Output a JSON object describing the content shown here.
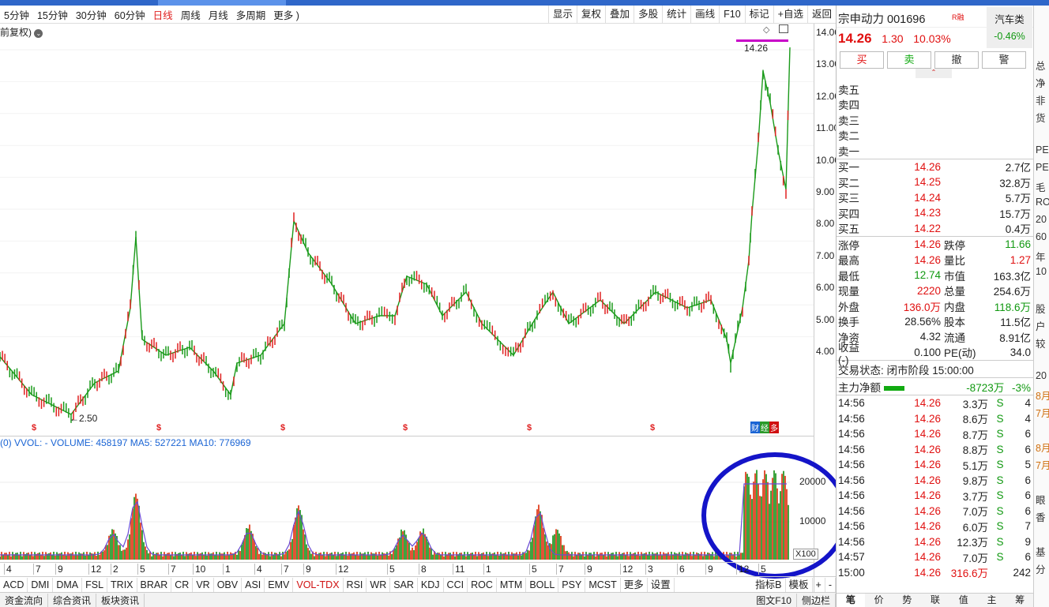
{
  "toolbar": {
    "periods": [
      "5分钟",
      "15分钟",
      "30分钟",
      "60分钟",
      "日线",
      "周线",
      "月线",
      "多周期",
      "更多 )"
    ],
    "active_period": "日线",
    "actions": [
      "显示",
      "复权",
      "叠加",
      "多股",
      "统计",
      "画线",
      "F10",
      "标记",
      "+自选",
      "返回"
    ]
  },
  "chart": {
    "fq_label": "前复权)",
    "price_ticks": [
      "14.00",
      "13.00",
      "12.00",
      "11.00",
      "10.00",
      "9.00",
      "8.00",
      "7.00",
      "6.00",
      "5.00",
      "4.00"
    ],
    "high_marker": "14.26",
    "low_marker": "2.50",
    "s_marker": "$",
    "finance_tags": [
      "财",
      "经",
      "多"
    ]
  },
  "volume": {
    "label": "(0) VVOL: - VOLUME: 458197 MA5: 527221 MA10: 776969",
    "ticks": [
      "20000",
      "10000"
    ],
    "scale": "X100"
  },
  "dates": [
    "4",
    "7",
    "9",
    "12",
    "2",
    "5",
    "7",
    "10",
    "1",
    "4",
    "7",
    "9",
    "12",
    "5",
    "8",
    "11",
    "1",
    "5",
    "7",
    "9",
    "12",
    "3",
    "6",
    "9",
    "12",
    "5"
  ],
  "indicators": [
    "ACD",
    "DMI",
    "DMA",
    "FSL",
    "TRIX",
    "BRAR",
    "CR",
    "VR",
    "OBV",
    "ASI",
    "EMV",
    "VOL-TDX",
    "RSI",
    "WR",
    "SAR",
    "KDJ",
    "CCI",
    "ROC",
    "MTM",
    "BOLL",
    "PSY",
    "MCST",
    "更多",
    "设置"
  ],
  "active_indicator": "VOL-TDX",
  "ind_right": [
    "指标B",
    "模板",
    "+",
    "-"
  ],
  "bottom_tabs": [
    "资金流向",
    "综合资讯",
    "板块资讯"
  ],
  "bottom_right": [
    "图文F10",
    "侧边栏"
  ],
  "stock": {
    "name": "宗申动力 001696",
    "badge": "R融",
    "sector": "汽车类",
    "sector_change": "-0.46%",
    "price": "14.26",
    "change": "1.30",
    "pct": "10.03%",
    "buttons": [
      "买",
      "卖",
      "撤",
      "警"
    ],
    "sell": [
      {
        "label": "卖五"
      },
      {
        "label": "卖四"
      },
      {
        "label": "卖三"
      },
      {
        "label": "卖二"
      },
      {
        "label": "卖一"
      }
    ],
    "buy": [
      {
        "label": "买一",
        "price": "14.26",
        "vol": "2.7亿"
      },
      {
        "label": "买二",
        "price": "14.25",
        "vol": "32.8万"
      },
      {
        "label": "买三",
        "price": "14.24",
        "vol": "5.7万"
      },
      {
        "label": "买四",
        "price": "14.23",
        "vol": "15.7万"
      },
      {
        "label": "买五",
        "price": "14.22",
        "vol": "0.4万"
      }
    ],
    "stats": [
      {
        "l1": "涨停",
        "v1": "14.26",
        "l2": "跌停",
        "v2": "11.66"
      },
      {
        "l1": "最高",
        "v1": "14.26",
        "l2": "量比",
        "v2": "1.27"
      },
      {
        "l1": "最低",
        "v1": "12.74",
        "l2": "市值",
        "v2": "163.3亿"
      },
      {
        "l1": "现量",
        "v1": "2220",
        "l2": "总量",
        "v2": "254.6万"
      },
      {
        "l1": "外盘",
        "v1": "136.0万",
        "l2": "内盘",
        "v2": "118.6万"
      },
      {
        "l1": "换手",
        "v1": "28.56%",
        "l2": "股本",
        "v2": "11.5亿"
      },
      {
        "l1": "净资",
        "v1": "4.32",
        "l2": "流通",
        "v2": "8.91亿"
      },
      {
        "l1": "收益(-)",
        "v1": "0.100",
        "l2": "PE(动)",
        "v2": "34.0"
      }
    ],
    "trade_status": "交易状态: 闭市阶段 15:00:00",
    "main_flow_label": "主力净额",
    "main_flow_value": "-8723万",
    "main_flow_pct": "-3%",
    "ticks": [
      {
        "t": "14:56",
        "p": "14.26",
        "v": "3.3万",
        "s": "S",
        "n": "4"
      },
      {
        "t": "14:56",
        "p": "14.26",
        "v": "8.6万",
        "s": "S",
        "n": "4"
      },
      {
        "t": "14:56",
        "p": "14.26",
        "v": "8.7万",
        "s": "S",
        "n": "6"
      },
      {
        "t": "14:56",
        "p": "14.26",
        "v": "8.8万",
        "s": "S",
        "n": "6"
      },
      {
        "t": "14:56",
        "p": "14.26",
        "v": "5.1万",
        "s": "S",
        "n": "5"
      },
      {
        "t": "14:56",
        "p": "14.26",
        "v": "9.8万",
        "s": "S",
        "n": "6"
      },
      {
        "t": "14:56",
        "p": "14.26",
        "v": "3.7万",
        "s": "S",
        "n": "6"
      },
      {
        "t": "14:56",
        "p": "14.26",
        "v": "7.0万",
        "s": "S",
        "n": "6"
      },
      {
        "t": "14:56",
        "p": "14.26",
        "v": "6.0万",
        "s": "S",
        "n": "7"
      },
      {
        "t": "14:56",
        "p": "14.26",
        "v": "12.3万",
        "s": "S",
        "n": "9"
      },
      {
        "t": "14:57",
        "p": "14.26",
        "v": "7.0万",
        "s": "S",
        "n": "6"
      },
      {
        "t": "15:00",
        "p": "14.26",
        "v": "316.6万",
        "s": "",
        "n": "242"
      }
    ],
    "tabs": [
      "笔",
      "价",
      "势",
      "联",
      "值",
      "主",
      "筹"
    ]
  },
  "far_right": [
    "",
    "",
    "",
    "总",
    "净",
    "非",
    "货",
    "",
    "PE",
    "PE",
    "毛",
    "RO",
    "20",
    "60",
    "年",
    "10",
    "",
    "股",
    "户",
    "较",
    "",
    "20",
    "8月",
    "7月",
    "",
    "8月",
    "7月",
    "",
    "眼",
    "香",
    "",
    "基",
    "分"
  ]
}
